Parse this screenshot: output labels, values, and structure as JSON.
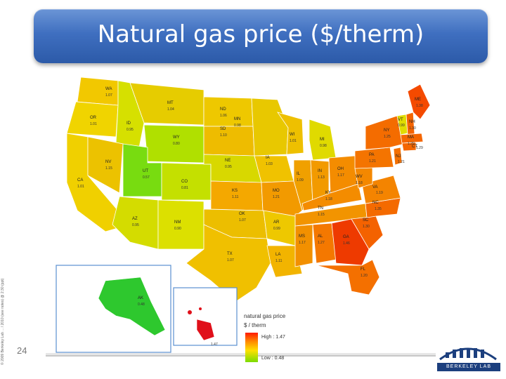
{
  "slide": {
    "title": "Natural gas price ($/therm)",
    "page_number": "24",
    "side_copyright": "© 2009 Berkeley Lab ... / 2010 (see notes) @ 2:30 (ppt)"
  },
  "legend": {
    "title": "natural gas price",
    "unit": "$ / therm",
    "high_label": "High : 1.47",
    "low_label": "Low : 0.48"
  },
  "logo": {
    "text": "BERKELEY LAB"
  },
  "states": {
    "WA": "1.07",
    "OR": "1.01",
    "ID": "0.95",
    "MT": "1.04",
    "WY": "0.80",
    "ND": "1.06",
    "SD": "1.10",
    "NE": "0.95",
    "MN": "0.98",
    "IA": "1.03",
    "WI": "1.01",
    "MI": "0.98",
    "NV": "1.15",
    "UT": "0.57",
    "CO": "0.81",
    "CA": "1.01",
    "AZ": "0.95",
    "NM": "0.90",
    "KS": "1.11",
    "OK": "1.07",
    "TX": "1.07",
    "MO": "1.21",
    "AR": "0.99",
    "LA": "1.11",
    "IL": "1.09",
    "IN": "1.13",
    "OH": "1.17",
    "KY": "1.18",
    "TN": "1.15",
    "MS": "1.17",
    "AL": "1.27",
    "GA": "1.46",
    "FL": "1.20",
    "SC": "1.30",
    "NC": "1.35",
    "VA": "1.19",
    "WV": "1.18",
    "PA": "1.21",
    "NY": "1.25",
    "ME": "1.38",
    "VT": "0.99",
    "NH": "1.30",
    "MA": "1.29",
    "CT": "1.29",
    "NJ": "1.21",
    "AK": "0.48",
    "HI": "1.47"
  },
  "colors": {
    "title_bar": "#3f6fc0",
    "high": "#ff1a00",
    "low": "#7bdc00"
  }
}
